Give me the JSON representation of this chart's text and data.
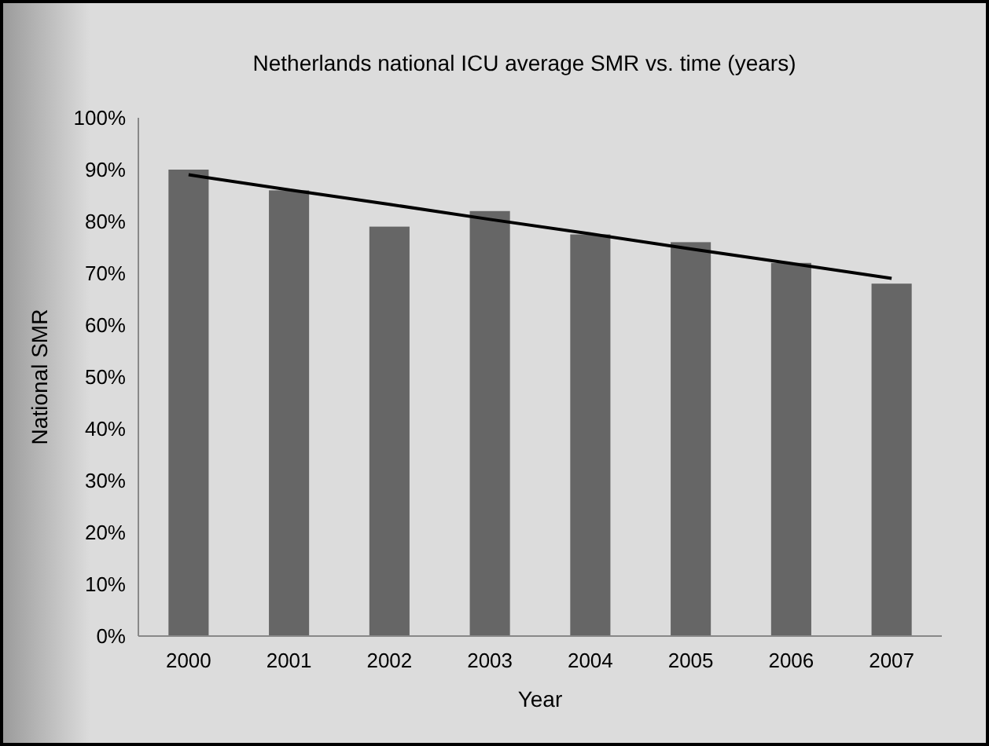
{
  "chart_data": {
    "type": "bar",
    "title": "Netherlands national ICU average SMR vs. time (years)",
    "xlabel": "Year",
    "ylabel": "National SMR",
    "categories": [
      "2000",
      "2001",
      "2002",
      "2003",
      "2004",
      "2005",
      "2006",
      "2007"
    ],
    "series": [
      {
        "color": "#666666",
        "values": [
          90,
          86,
          79,
          82,
          77.5,
          76,
          72,
          68
        ]
      },
      {
        "type": "line",
        "color": "#000000",
        "values": [
          89,
          86.1,
          83.3,
          80.4,
          77.6,
          74.7,
          71.9,
          69
        ]
      }
    ],
    "ylim": [
      0,
      100
    ],
    "yticks": [
      {
        "value": 0,
        "label": "0%"
      },
      {
        "value": 10,
        "label": "10%"
      },
      {
        "value": 20,
        "label": "20%"
      },
      {
        "value": 30,
        "label": "30%"
      },
      {
        "value": 40,
        "label": "40%"
      },
      {
        "value": 50,
        "label": "50%"
      },
      {
        "value": 60,
        "label": "60%"
      },
      {
        "value": 70,
        "label": "70%"
      },
      {
        "value": 80,
        "label": "80%"
      },
      {
        "value": 90,
        "label": "90%"
      },
      {
        "value": 100,
        "label": "100%"
      }
    ],
    "grid": false
  }
}
